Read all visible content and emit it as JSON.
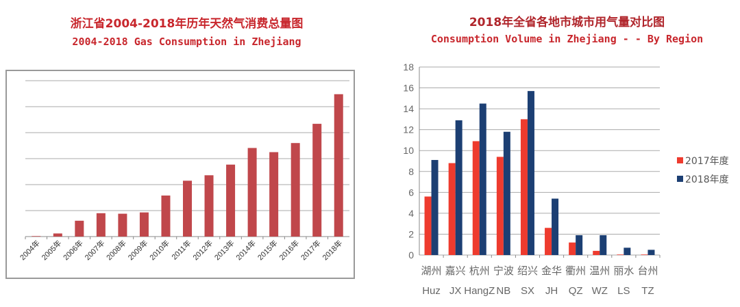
{
  "chart_data": [
    {
      "type": "bar",
      "title": "浙江省2004-2018年历年天然气消费总量图",
      "subtitle": "2004-2018 Gas Consumption in Zhejiang",
      "xlabel": "",
      "ylabel": "",
      "categories": [
        "2004年",
        "2005年",
        "2006年",
        "2007年",
        "2008年",
        "2009年",
        "2010年",
        "2011年",
        "2012年",
        "2013年",
        "2014年",
        "2015年",
        "2016年",
        "2017年",
        "2018年"
      ],
      "values": [
        0.02,
        0.12,
        0.61,
        0.9,
        0.88,
        0.93,
        1.58,
        2.15,
        2.36,
        2.77,
        3.41,
        3.25,
        3.6,
        4.34,
        5.48
      ],
      "ylim": [
        0,
        6
      ],
      "grid": true,
      "color": "#c0474b"
    },
    {
      "type": "bar",
      "title": "2018年全省各地市城市用气量对比图",
      "subtitle": "Consumption Volume in Zhejiang - - By Region",
      "categories_cn": [
        "湖州",
        "嘉兴",
        "杭州",
        "宁波",
        "绍兴",
        "金华",
        "衢州",
        "温州",
        "丽水",
        "台州"
      ],
      "categories": [
        "Huz",
        "JX",
        "HangZ",
        "NB",
        "SX",
        "JH",
        "QZ",
        "WZ",
        "LS",
        "TZ"
      ],
      "series": [
        {
          "name": "2017年度",
          "color": "#ee3b2e",
          "values": [
            5.6,
            8.8,
            10.9,
            9.4,
            13.0,
            2.6,
            1.2,
            0.4,
            0.05,
            0.05
          ]
        },
        {
          "name": "2018年度",
          "color": "#1c3f73",
          "values": [
            9.1,
            12.9,
            14.5,
            11.8,
            15.7,
            5.4,
            1.9,
            1.9,
            0.7,
            0.5
          ]
        }
      ],
      "yticks": [
        "0",
        "2",
        "4",
        "6",
        "8",
        "10",
        "12",
        "14",
        "16",
        "18"
      ],
      "ylim": [
        0,
        18
      ],
      "grid": true,
      "legend": "right"
    }
  ]
}
